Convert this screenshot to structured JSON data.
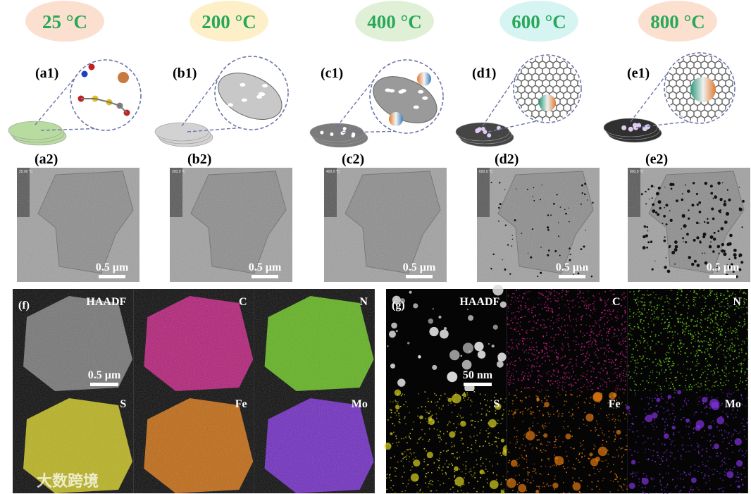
{
  "temperatures": [
    "25 °C",
    "200 °C",
    "400 °C",
    "600 °C",
    "800 °C"
  ],
  "schematic_labels": [
    "(a1)",
    "(b1)",
    "(c1)",
    "(d1)",
    "(e1)"
  ],
  "tem_panels": [
    {
      "label": "(a2)",
      "overlay": "25.00 °C",
      "scale_bar": "0.5 µm"
    },
    {
      "label": "(b2)",
      "overlay": "200.0 °C",
      "scale_bar": "0.5 µm"
    },
    {
      "label": "(c2)",
      "overlay": "400.0 °C",
      "scale_bar": "0.5 µm"
    },
    {
      "label": "(d2)",
      "overlay": "600.0 °C",
      "scale_bar": "0.5 µm"
    },
    {
      "label": "(e2)",
      "overlay": "800.0 °C",
      "scale_bar": "0.5 µm"
    }
  ],
  "eds": [
    {
      "label": "(f)",
      "scale_bar": "0.5 µm",
      "maps": [
        "HAADF",
        "C",
        "N",
        "S",
        "Fe",
        "Mo"
      ]
    },
    {
      "label": "(g)",
      "scale_bar": "50 nm",
      "maps": [
        "HAADF",
        "C",
        "N",
        "S",
        "Fe",
        "Mo"
      ]
    }
  ],
  "watermark": "大数跨境"
}
